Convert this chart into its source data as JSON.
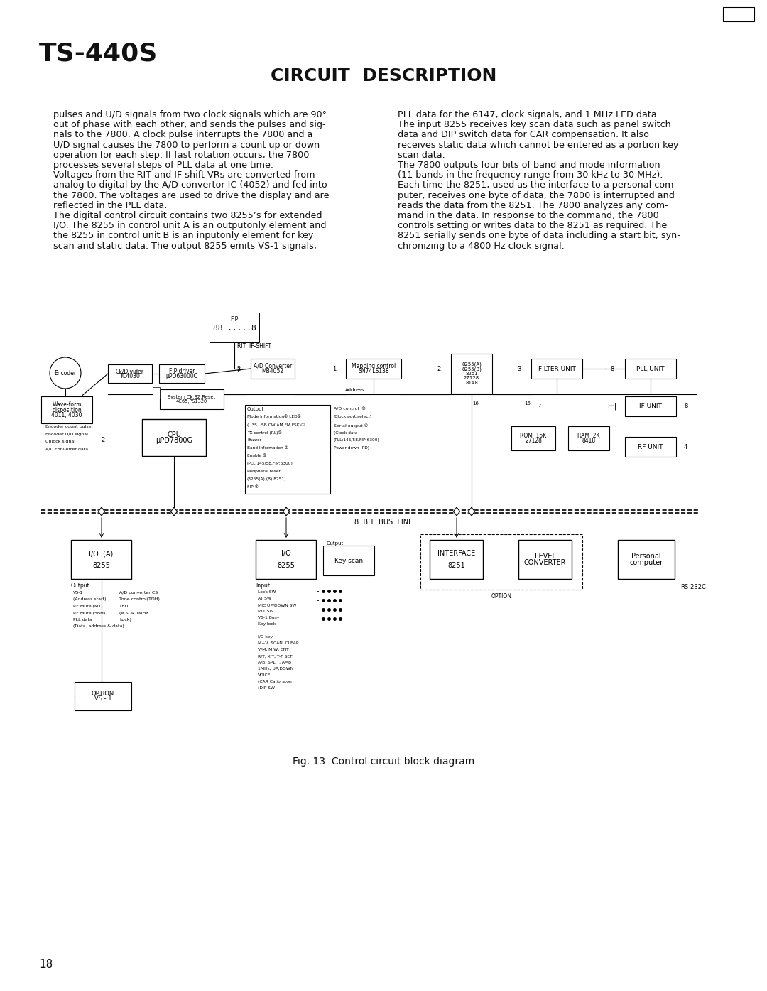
{
  "title_ts": "TS-440S",
  "title_circuit": "CIRCUIT  DESCRIPTION",
  "page_number": "18",
  "bg_color": "#ffffff",
  "text_color": "#000000",
  "left_col_text": "pulses and U/D signals from two clock signals which are 90°\nout of phase with each other, and sends the pulses and sig-\nnals to the 7800. A clock pulse interrupts the 7800 and a\nU/D signal causes the 7800 to perform a count up or down\noperation for each step. If fast rotation occurs, the 7800\nprocesses several steps of PLL data at one time.\nVoltages from the RIT and IF shift VRs are converted from\nanalog to digital by the A/D convertor IC (4052) and fed into\nthe 7800. The voltages are used to drive the display and are\nreflected in the PLL data.\nThe digital control circuit contains two 8255’s for extended\nI/O. The 8255 in control unit A is an outputonly element and\nthe 8255 in control unit B is an inputonly element for key\nscan and static data. The output 8255 emits VS-1 signals,",
  "right_col_text": "PLL data for the 6147, clock signals, and 1 MHz LED data.\nThe input 8255 receives key scan data such as panel switch\ndata and DIP switch data for CAR compensation. It also\nreceives static data which cannot be entered as a portion key\nscan data.\nThe 7800 outputs four bits of band and mode information\n(11 bands in the frequency range from 30 kHz to 30 MHz).\nEach time the 8251, used as the interface to a personal com-\nputer, receives one byte of data, the 7800 is interrupted and\nreads the data from the 8251. The 7800 analyzes any com-\nmand in the data. In response to the command, the 7800\ncontrols setting or writes data to the 8251 as required. The\n8251 serially sends one byte of data including a start bit, syn-\nchronizing to a 4800 Hz clock signal.",
  "fig_caption": "Fig. 13  Control circuit block diagram"
}
